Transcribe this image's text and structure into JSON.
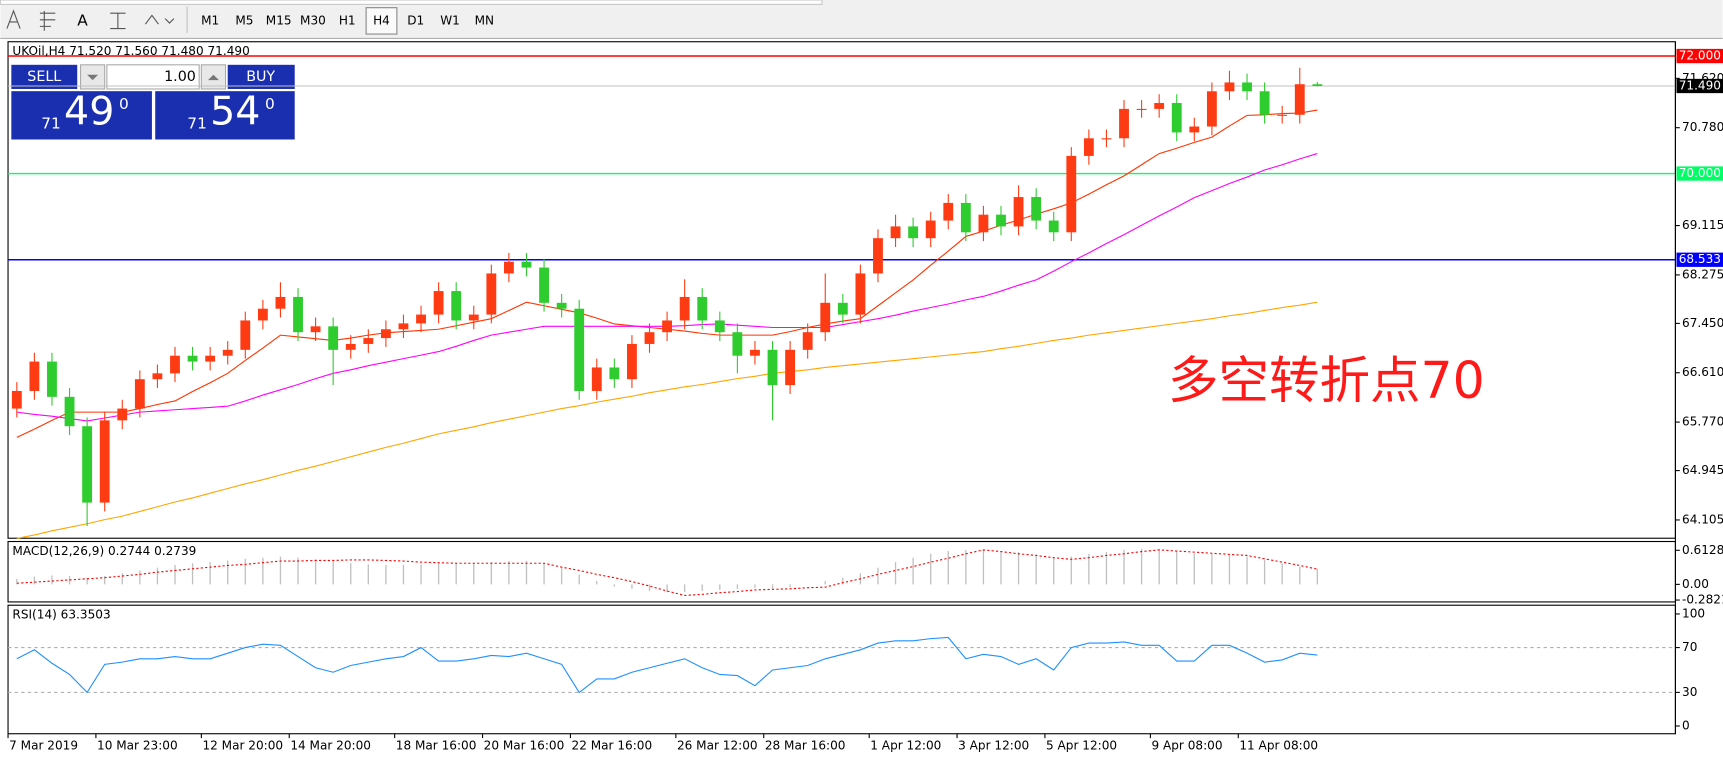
{
  "toolbar": {
    "text_tool": "A",
    "timeframes": [
      "M1",
      "M5",
      "M15",
      "M30",
      "H1",
      "H4",
      "D1",
      "W1",
      "MN"
    ],
    "active_index": 5
  },
  "trade_panel": {
    "sell": "SELL",
    "buy": "BUY",
    "lots": "1.00",
    "bid_big": "71",
    "bid_main": "49",
    "bid_sup": "0",
    "ask_big": "71",
    "ask_main": "54",
    "ask_sup": "0"
  },
  "annotation": "多空转折点70",
  "chart_data": [
    {
      "type": "candlestick",
      "title": "UKOil,H4  71.520 71.560 71.480 71.490",
      "up_color": "#ff3b14",
      "down_color": "#2ecc2e",
      "categories": [
        "7 Mar 2019",
        null,
        null,
        null,
        null,
        "10 Mar 23:00",
        null,
        null,
        null,
        null,
        null,
        "12 Mar 20:00",
        null,
        null,
        null,
        null,
        "14 Mar 20:00",
        null,
        null,
        null,
        null,
        null,
        "18 Mar 16:00",
        null,
        null,
        null,
        null,
        "20 Mar 16:00",
        null,
        null,
        null,
        null,
        "22 Mar 16:00",
        null,
        null,
        null,
        null,
        null,
        "26 Mar 12:00",
        null,
        null,
        null,
        null,
        "28 Mar 16:00",
        null,
        null,
        null,
        null,
        null,
        "1 Apr 12:00",
        null,
        null,
        null,
        null,
        "3 Apr 12:00",
        null,
        null,
        null,
        null,
        "5 Apr 12:00",
        null,
        null,
        null,
        null,
        null,
        "9 Apr 08:00",
        null,
        null,
        null,
        null,
        "11 Apr 08:00",
        null,
        null,
        null,
        null
      ],
      "open": [
        66.0,
        66.3,
        66.8,
        66.2,
        65.7,
        64.4,
        65.8,
        66.0,
        66.5,
        66.6,
        66.9,
        66.8,
        66.9,
        67.0,
        67.5,
        67.7,
        67.9,
        67.3,
        67.4,
        67.0,
        67.1,
        67.2,
        67.35,
        67.45,
        67.6,
        68.0,
        67.5,
        67.6,
        68.3,
        68.5,
        68.4,
        67.8,
        67.7,
        66.3,
        66.7,
        66.5,
        67.1,
        67.3,
        67.5,
        67.9,
        67.5,
        67.3,
        66.9,
        67.0,
        66.4,
        67.0,
        67.3,
        67.8,
        67.6,
        68.3,
        68.9,
        69.1,
        68.9,
        69.2,
        69.5,
        69.0,
        69.3,
        69.1,
        69.6,
        69.2,
        69.0,
        70.3,
        70.6,
        70.6,
        71.1,
        71.1,
        71.2,
        70.7,
        70.8,
        71.4,
        71.55,
        71.4,
        71.0,
        71.0,
        71.52
      ],
      "high": [
        66.45,
        66.95,
        66.95,
        66.35,
        65.85,
        65.95,
        66.15,
        66.65,
        66.75,
        67.05,
        67.05,
        67.05,
        67.15,
        67.65,
        67.85,
        68.15,
        68.05,
        67.55,
        67.55,
        67.25,
        67.35,
        67.5,
        67.6,
        67.75,
        68.15,
        68.15,
        67.75,
        68.45,
        68.65,
        68.65,
        68.55,
        67.95,
        67.85,
        66.85,
        66.85,
        67.25,
        67.45,
        67.65,
        68.2,
        68.05,
        67.65,
        67.45,
        67.15,
        67.15,
        67.15,
        67.45,
        68.3,
        67.95,
        68.45,
        69.05,
        69.3,
        69.25,
        69.35,
        69.65,
        69.65,
        69.45,
        69.45,
        69.8,
        69.75,
        69.35,
        70.45,
        70.75,
        70.75,
        71.25,
        71.25,
        71.35,
        71.35,
        70.95,
        71.55,
        71.75,
        71.7,
        71.55,
        71.15,
        71.8,
        71.56
      ],
      "low": [
        65.85,
        66.15,
        66.05,
        65.55,
        64.0,
        64.25,
        65.65,
        65.85,
        66.35,
        66.45,
        66.65,
        66.65,
        66.75,
        66.85,
        67.35,
        67.55,
        67.15,
        67.15,
        66.4,
        66.85,
        66.95,
        67.05,
        67.2,
        67.3,
        67.45,
        67.35,
        67.35,
        67.45,
        68.15,
        68.25,
        67.65,
        67.55,
        66.15,
        66.15,
        66.35,
        66.35,
        66.95,
        67.15,
        67.35,
        67.35,
        67.15,
        66.6,
        66.75,
        65.8,
        66.25,
        66.85,
        67.15,
        67.45,
        67.45,
        68.15,
        68.75,
        68.75,
        68.75,
        69.05,
        68.85,
        68.85,
        68.95,
        68.95,
        69.05,
        68.85,
        68.85,
        70.15,
        70.45,
        70.45,
        70.95,
        70.95,
        70.55,
        70.55,
        70.65,
        71.25,
        71.25,
        70.85,
        70.85,
        70.85,
        71.48
      ],
      "close": [
        66.3,
        66.8,
        66.2,
        65.7,
        64.4,
        65.8,
        66.0,
        66.5,
        66.6,
        66.9,
        66.8,
        66.9,
        67.0,
        67.5,
        67.7,
        67.9,
        67.3,
        67.4,
        67.0,
        67.1,
        67.2,
        67.35,
        67.45,
        67.6,
        68.0,
        67.5,
        67.6,
        68.3,
        68.5,
        68.4,
        67.8,
        67.7,
        66.3,
        66.7,
        66.5,
        67.1,
        67.3,
        67.5,
        67.9,
        67.5,
        67.3,
        66.9,
        67.0,
        66.4,
        67.0,
        67.3,
        67.8,
        67.6,
        68.3,
        68.9,
        69.1,
        68.9,
        69.2,
        69.5,
        69.0,
        69.3,
        69.1,
        69.6,
        69.2,
        69.0,
        70.3,
        70.6,
        70.6,
        71.1,
        71.1,
        71.2,
        70.7,
        70.8,
        71.4,
        71.55,
        71.4,
        71.0,
        71.0,
        71.52,
        71.49
      ],
      "overlays": [
        {
          "color": "#ff3300",
          "values": [
            65.51,
            65.65,
            65.8,
            65.94,
            65.94,
            65.94,
            65.94,
            66.0,
            66.07,
            66.13,
            66.29,
            66.44,
            66.6,
            66.82,
            67.03,
            67.25,
            67.22,
            67.19,
            67.16,
            67.2,
            67.25,
            67.29,
            67.31,
            67.33,
            67.35,
            67.41,
            67.47,
            67.53,
            67.67,
            67.81,
            67.75,
            67.69,
            67.63,
            67.54,
            67.44,
            67.41,
            67.38,
            67.35,
            67.32,
            67.28,
            67.25,
            67.25,
            67.25,
            67.25,
            67.31,
            67.38,
            67.44,
            67.49,
            67.53,
            67.75,
            67.97,
            68.19,
            68.44,
            68.68,
            68.93,
            69.02,
            69.12,
            69.21,
            69.31,
            69.4,
            69.5,
            69.65,
            69.81,
            69.96,
            70.15,
            70.34,
            70.43,
            70.53,
            70.62,
            70.81,
            70.99,
            71.0,
            71.02,
            71.03,
            71.08
          ]
        },
        {
          "color": "#ff00ff",
          "values": [
            65.94,
            65.9,
            65.87,
            65.83,
            65.79,
            65.84,
            65.89,
            65.94,
            65.96,
            65.98,
            66.0,
            66.02,
            66.04,
            66.13,
            66.23,
            66.32,
            66.41,
            66.51,
            66.6,
            66.66,
            66.73,
            66.79,
            66.85,
            66.91,
            66.97,
            67.06,
            67.16,
            67.25,
            67.3,
            67.35,
            67.4,
            67.4,
            67.4,
            67.4,
            67.4,
            67.4,
            67.4,
            67.4,
            67.41,
            67.43,
            67.44,
            67.42,
            67.4,
            67.38,
            67.38,
            67.38,
            67.38,
            67.43,
            67.48,
            67.53,
            67.59,
            67.66,
            67.72,
            67.78,
            67.85,
            67.91,
            68.0,
            68.1,
            68.19,
            68.34,
            68.5,
            68.65,
            68.81,
            68.96,
            69.12,
            69.28,
            69.43,
            69.59,
            69.71,
            69.83,
            69.94,
            70.06,
            70.15,
            70.25,
            70.34
          ]
        },
        {
          "color": "#ffa500",
          "values": [
            63.79,
            63.85,
            63.92,
            63.98,
            64.04,
            64.11,
            64.17,
            64.25,
            64.33,
            64.41,
            64.48,
            64.56,
            64.64,
            64.72,
            64.79,
            64.87,
            64.95,
            65.02,
            65.1,
            65.18,
            65.26,
            65.34,
            65.41,
            65.49,
            65.57,
            65.63,
            65.69,
            65.76,
            65.82,
            65.88,
            65.94,
            66.0,
            66.05,
            66.11,
            66.16,
            66.21,
            66.27,
            66.32,
            66.37,
            66.41,
            66.46,
            66.51,
            66.55,
            66.6,
            66.63,
            66.66,
            66.7,
            66.73,
            66.76,
            66.79,
            66.82,
            66.85,
            66.88,
            66.91,
            66.94,
            66.97,
            67.02,
            67.06,
            67.11,
            67.16,
            67.2,
            67.25,
            67.29,
            67.33,
            67.37,
            67.41,
            67.45,
            67.49,
            67.53,
            67.58,
            67.62,
            67.67,
            67.72,
            67.76,
            67.81
          ]
        }
      ],
      "hlines": [
        {
          "value": 72,
          "label": "72.000",
          "color": "#ff0000"
        },
        {
          "value": 70,
          "label": "70.000",
          "color": "#00ff66"
        },
        {
          "value": 68.533,
          "label": "68.533",
          "color": "#0000ff"
        }
      ],
      "price_label": {
        "value": 71.49,
        "label": "71.490"
      },
      "ylim": [
        63.794,
        72.243
      ],
      "yticks": [
        {
          "value": 71.62,
          "label": "71.620"
        },
        {
          "value": 70.78,
          "label": "70.780"
        },
        {
          "value": 69.115,
          "label": "69.115"
        },
        {
          "value": 68.275,
          "label": "68.275"
        },
        {
          "value": 67.45,
          "label": "67.450"
        },
        {
          "value": 66.61,
          "label": "66.610"
        },
        {
          "value": 65.77,
          "label": "65.770"
        },
        {
          "value": 64.945,
          "label": "64.945"
        },
        {
          "value": 64.105,
          "label": "64.105"
        }
      ]
    },
    {
      "type": "macd",
      "title": "MACD(12,26,9) 0.2744 0.2739",
      "series": [
        {
          "color": "#c0c0c0",
          "values": [
            0.1,
            0.14,
            0.16,
            0.15,
            0.12,
            0.15,
            0.2,
            0.25,
            0.3,
            0.35,
            0.38,
            0.4,
            0.43,
            0.46,
            0.48,
            0.5,
            0.48,
            0.45,
            0.42,
            0.38,
            0.36,
            0.35,
            0.35,
            0.36,
            0.38,
            0.38,
            0.38,
            0.4,
            0.42,
            0.42,
            0.38,
            0.32,
            0.18,
            0.06,
            -0.04,
            -0.08,
            -0.12,
            -0.14,
            -0.14,
            -0.12,
            -0.1,
            -0.08,
            -0.06,
            -0.08,
            -0.05,
            0.0,
            0.06,
            0.12,
            0.2,
            0.3,
            0.4,
            0.48,
            0.55,
            0.6,
            0.62,
            0.62,
            0.6,
            0.58,
            0.54,
            0.48,
            0.5,
            0.55,
            0.58,
            0.62,
            0.64,
            0.64,
            0.6,
            0.56,
            0.55,
            0.54,
            0.5,
            0.44,
            0.38,
            0.32,
            0.2744
          ]
        },
        {
          "color": "#ff0000",
          "values": [
            0.02,
            0.04,
            0.06,
            0.08,
            0.1,
            0.12,
            0.15,
            0.18,
            0.22,
            0.25,
            0.28,
            0.31,
            0.34,
            0.36,
            0.39,
            0.42,
            0.42,
            0.43,
            0.43,
            0.44,
            0.44,
            0.43,
            0.42,
            0.4,
            0.39,
            0.38,
            0.38,
            0.38,
            0.38,
            0.38,
            0.38,
            0.31,
            0.25,
            0.18,
            0.12,
            0.05,
            -0.03,
            -0.12,
            -0.2,
            -0.18,
            -0.15,
            -0.13,
            -0.1,
            -0.09,
            -0.08,
            -0.06,
            -0.05,
            0.03,
            0.1,
            0.18,
            0.25,
            0.32,
            0.4,
            0.47,
            0.55,
            0.62,
            0.59,
            0.55,
            0.52,
            0.48,
            0.45,
            0.48,
            0.52,
            0.55,
            0.59,
            0.62,
            0.6,
            0.58,
            0.56,
            0.54,
            0.52,
            0.46,
            0.4,
            0.34,
            0.2739
          ]
        }
      ],
      "ylim": [
        -0.316,
        0.771
      ],
      "yticks": [
        0.6128,
        {
          "value": 0,
          "label": "0.00"
        },
        -0.2821
      ]
    },
    {
      "type": "line",
      "title": "RSI(14) 63.3503",
      "series": [
        {
          "color": "#1e90ff",
          "values": [
            60,
            68,
            56,
            46,
            30,
            55,
            57,
            60,
            60,
            62,
            60,
            60,
            65,
            70,
            73,
            72,
            62,
            52,
            48,
            54,
            57,
            60,
            62,
            70,
            58,
            58,
            60,
            63,
            62,
            65,
            60,
            55,
            30,
            42,
            42,
            48,
            52,
            56,
            60,
            52,
            46,
            45,
            36,
            50,
            52,
            54,
            60,
            64,
            68,
            74,
            76,
            76,
            78,
            79,
            60,
            64,
            62,
            55,
            60,
            50,
            70,
            74,
            74,
            75,
            72,
            72,
            58,
            58,
            72,
            72,
            65,
            57,
            59,
            65,
            63.3503
          ]
        }
      ],
      "levels": [
        70,
        30
      ],
      "ylim": [
        -6.9,
        107.8
      ],
      "yticks": [
        100,
        70,
        30,
        0
      ]
    }
  ]
}
